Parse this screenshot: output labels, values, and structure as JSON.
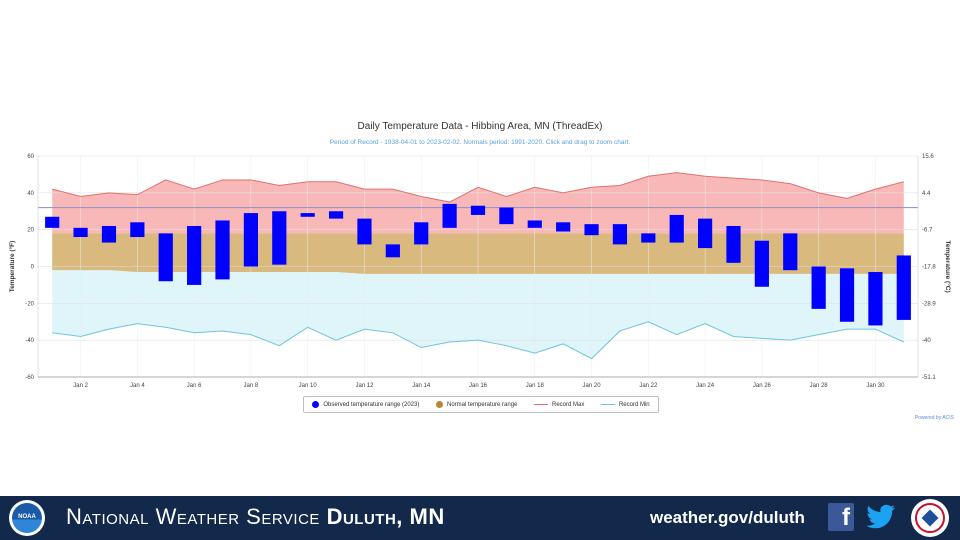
{
  "chart_data": {
    "type": "bar",
    "title": "Daily Temperature Data - Hibbing Area, MN (ThreadEx)",
    "subtitle": "Period of Record - 1938-04-01 to 2023-02-02. Normals period: 1991-2020. Click and drag to zoom chart.",
    "ylabel": "Temperature (°F)",
    "ylabel_right": "Temperature (°C)",
    "ylim": [
      -60,
      60
    ],
    "xlim": [
      0.5,
      31.5
    ],
    "yticks_left": [
      "60",
      "40",
      "20",
      "0",
      "-20",
      "-40",
      "-60"
    ],
    "yticks_right": [
      "15.6",
      "4.4",
      "-6.7",
      "-17.8",
      "-28.9",
      "-40",
      "-51.1"
    ],
    "xticks": [
      2,
      4,
      6,
      8,
      10,
      12,
      14,
      16,
      18,
      20,
      22,
      24,
      26,
      28,
      30
    ],
    "xtick_labels": [
      "Jan 2",
      "Jan 4",
      "Jan 6",
      "Jan 8",
      "Jan 10",
      "Jan 12",
      "Jan 14",
      "Jan 16",
      "Jan 18",
      "Jan 20",
      "Jan 22",
      "Jan 24",
      "Jan 26",
      "Jan 28",
      "Jan 30"
    ],
    "days": [
      1,
      2,
      3,
      4,
      5,
      6,
      7,
      8,
      9,
      10,
      11,
      12,
      13,
      14,
      15,
      16,
      17,
      18,
      19,
      20,
      21,
      22,
      23,
      24,
      25,
      26,
      27,
      28,
      29,
      30,
      31
    ],
    "reference_line": 32,
    "series": [
      {
        "name": "Observed temperature range (2023)",
        "color": "#0000ff",
        "high": [
          27,
          21,
          22,
          24,
          18,
          22,
          25,
          29,
          30,
          29,
          30,
          26,
          12,
          24,
          34,
          33,
          32,
          25,
          24,
          23,
          23,
          18,
          28,
          26,
          22,
          14,
          18,
          0,
          -1,
          -3,
          6
        ],
        "low": [
          21,
          16,
          13,
          16,
          -8,
          -10,
          -7,
          0,
          1,
          27,
          26,
          12,
          5,
          12,
          21,
          28,
          23,
          21,
          19,
          17,
          12,
          13,
          13,
          10,
          2,
          -11,
          -2,
          -23,
          -30,
          -32,
          -29
        ]
      },
      {
        "name": "Normal temperature range",
        "color": "#c49a3a",
        "high": [
          18,
          18,
          18,
          18,
          18,
          18,
          18,
          18,
          18,
          18,
          18,
          18,
          18,
          18,
          18,
          18,
          18,
          18,
          18,
          18,
          18,
          18,
          18,
          18,
          18,
          18,
          18,
          18,
          18,
          18,
          18
        ],
        "low": [
          -2,
          -2,
          -2,
          -3,
          -3,
          -3,
          -3,
          -3,
          -3,
          -3,
          -3,
          -4,
          -4,
          -4,
          -4,
          -4,
          -4,
          -4,
          -4,
          -4,
          -4,
          -4,
          -4,
          -4,
          -4,
          -4,
          -4,
          -4,
          -4,
          -4,
          -4
        ]
      },
      {
        "name": "Record Max",
        "color": "#e07070",
        "values": [
          42,
          38,
          40,
          39,
          47,
          42,
          47,
          47,
          44,
          46,
          46,
          42,
          42,
          38,
          35,
          43,
          38,
          43,
          40,
          43,
          44,
          49,
          51,
          49,
          48,
          47,
          45,
          40,
          37,
          42,
          46
        ]
      },
      {
        "name": "Record Min",
        "color": "#6cc6d8",
        "values": [
          -36,
          -38,
          -34,
          -31,
          -33,
          -36,
          -35,
          -37,
          -43,
          -33,
          -40,
          -34,
          -36,
          -44,
          -41,
          -40,
          -43,
          -47,
          -42,
          -50,
          -35,
          -30,
          -37,
          -31,
          -38,
          -39,
          -40,
          -37,
          -34,
          -34,
          -41
        ]
      }
    ],
    "legend_position": "bottom-center"
  },
  "footer": {
    "org_light": "National Weather Service",
    "org_bold": "Duluth, MN",
    "website": "weather.gov/duluth",
    "noaa_text": "NOAA",
    "facebook_icon": "facebook-icon",
    "twitter_icon": "twitter-icon"
  },
  "powered_by": "Powered by ACIS"
}
